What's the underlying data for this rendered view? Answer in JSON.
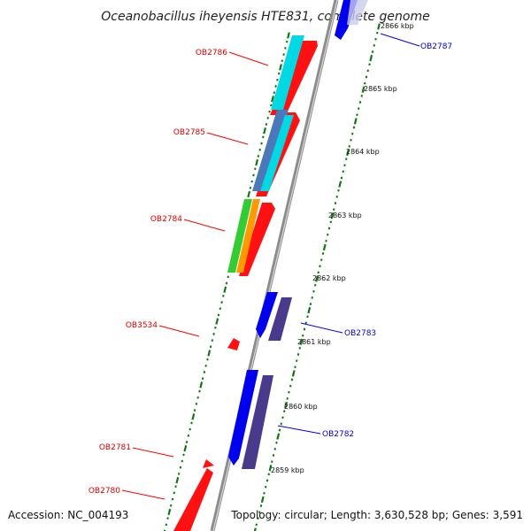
{
  "title": "Oceanobacillus iheyensis HTE831, complete genome",
  "accession": "Accession: NC_004193",
  "topology": "Topology: circular; Length: 3,630,528 bp; Genes: 3,591",
  "colors": {
    "forward": "#ff0000",
    "reverse": "#0000ee",
    "reverse_alt": "#55448a",
    "cyan": "#00d6e0",
    "steel": "#4a78b8",
    "green": "#33cc33",
    "orange": "#ff9900",
    "backbone": "#888888",
    "tick": "#117711"
  },
  "kbp_labels": [
    "2866 kbp",
    "2865 kbp",
    "2864 kbp",
    "2863 kbp",
    "2862 kbp",
    "2861 kbp",
    "2860 kbp",
    "2859 kbp"
  ],
  "gene_labels": {
    "ob2786": "OB2786",
    "ob2785": "OB2785",
    "ob2784": "OB2784",
    "ob3534": "OB3534",
    "ob2781": "OB2781",
    "ob2780": "OB2780",
    "ob2787": "OB2787",
    "ob2783": "OB2783",
    "ob2782": "OB2782"
  }
}
